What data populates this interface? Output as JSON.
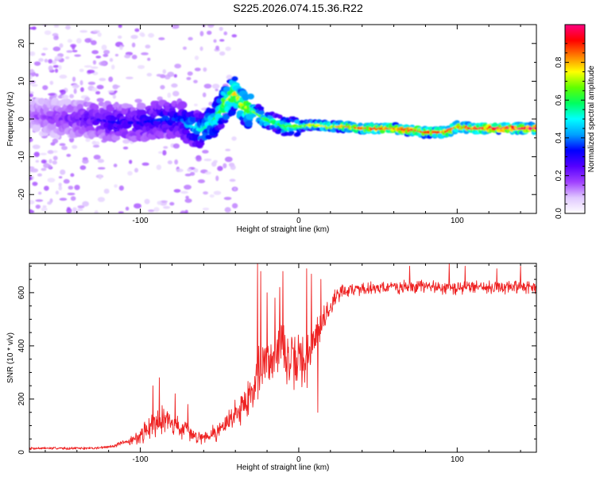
{
  "title": "S225.2026.074.15.36.R22",
  "chart_data": [
    {
      "type": "heatmap",
      "xlabel": "Height of straight line (km)",
      "ylabel": "Frequency (Hz)",
      "xlim": [
        -170,
        150
      ],
      "ylim": [
        -25,
        25
      ],
      "xticks": [
        -100,
        0,
        100
      ],
      "yticks": [
        -20,
        -10,
        0,
        10,
        20
      ],
      "grid": false,
      "legend": "none",
      "colorbar": {
        "label": "Normalized spectral amplitude",
        "range": [
          0,
          1
        ],
        "ticks": [
          0.0,
          0.2,
          0.4,
          0.6,
          0.8
        ],
        "tick_labels": [
          "0.0",
          "0.2",
          "0.4",
          "0.6",
          "0.8"
        ],
        "colormap": [
          "#ffffff",
          "#e0c8ff",
          "#a040ff",
          "#5500ff",
          "#0000ff",
          "#00a0ff",
          "#00ffff",
          "#00ff60",
          "#60ff00",
          "#ffff00",
          "#ff8000",
          "#ff0000",
          "#ff0080"
        ]
      },
      "ridge": {
        "x": [
          -170,
          -150,
          -130,
          -115,
          -100,
          -85,
          -75,
          -68,
          -62,
          -55,
          -50,
          -45,
          -40,
          -37,
          -33,
          -28,
          -22,
          -15,
          -8,
          0,
          10,
          20,
          30,
          40,
          50,
          60,
          70,
          75,
          78,
          85,
          92,
          96,
          100,
          110,
          120,
          130,
          140,
          150
        ],
        "y": [
          1,
          0,
          0,
          -1,
          -1,
          0,
          0,
          -2,
          -3,
          -1,
          2,
          5,
          7,
          4,
          3,
          2,
          0,
          -1,
          -2,
          -2,
          -1.5,
          -2,
          -2,
          -2.5,
          -2.5,
          -2.5,
          -3,
          -3,
          -3.5,
          -3.5,
          -3.5,
          -3,
          -2,
          -2.5,
          -2.5,
          -2.5,
          -2.5,
          -2.5
        ],
        "amplitude": [
          0.15,
          0.2,
          0.25,
          0.3,
          0.3,
          0.35,
          0.35,
          0.45,
          0.5,
          0.55,
          0.6,
          0.7,
          0.75,
          0.7,
          0.7,
          0.65,
          0.6,
          0.55,
          0.6,
          0.65,
          0.7,
          0.75,
          0.8,
          0.85,
          0.9,
          0.9,
          0.9,
          0.9,
          0.85,
          0.85,
          0.9,
          0.9,
          0.9,
          0.9,
          0.95,
          0.95,
          0.95,
          0.95
        ]
      }
    },
    {
      "type": "line",
      "xlabel": "Height of straight line (km)",
      "ylabel": "SNR (10 * v/v)",
      "xlim": [
        -170,
        150
      ],
      "ylim": [
        0,
        710
      ],
      "xticks": [
        -100,
        0,
        100
      ],
      "yticks": [
        0,
        200,
        400,
        600
      ],
      "grid": false,
      "legend": "none",
      "series": [
        {
          "color": "#ee2222",
          "x": [
            -170,
            -150,
            -130,
            -120,
            -110,
            -100,
            -95,
            -90,
            -85,
            -80,
            -75,
            -70,
            -65,
            -60,
            -55,
            -50,
            -45,
            -40,
            -35,
            -30,
            -27,
            -25,
            -22,
            -18,
            -15,
            -12,
            -10,
            -7,
            -5,
            -2,
            0,
            3,
            5,
            8,
            10,
            12,
            15,
            20,
            25,
            30,
            40,
            50,
            60,
            70,
            80,
            90,
            100,
            110,
            120,
            130,
            140,
            150
          ],
          "values": [
            15,
            15,
            15,
            20,
            35,
            60,
            90,
            120,
            130,
            110,
            90,
            75,
            60,
            60,
            70,
            85,
            110,
            150,
            180,
            220,
            290,
            300,
            330,
            350,
            380,
            390,
            400,
            350,
            320,
            330,
            360,
            340,
            330,
            390,
            440,
            460,
            490,
            550,
            600,
            610,
            615,
            620,
            620,
            620,
            625,
            620,
            615,
            625,
            620,
            620,
            625,
            620
          ],
          "noise": [
            5,
            5,
            5,
            6,
            10,
            30,
            45,
            55,
            55,
            45,
            40,
            35,
            25,
            25,
            30,
            40,
            45,
            55,
            70,
            85,
            100,
            120,
            100,
            100,
            90,
            95,
            95,
            100,
            110,
            110,
            110,
            110,
            110,
            95,
            90,
            70,
            60,
            40,
            30,
            30,
            25,
            25,
            25,
            25,
            25,
            25,
            25,
            25,
            25,
            25,
            25,
            25
          ],
          "spikes": [
            [
              -92,
              250
            ],
            [
              -88,
              280
            ],
            [
              -78,
              220
            ],
            [
              -70,
              180
            ],
            [
              -26,
              710
            ],
            [
              -24,
              680
            ],
            [
              -20,
              600
            ],
            [
              -15,
              580
            ],
            [
              -12,
              620
            ],
            [
              -10,
              680
            ],
            [
              5,
              690
            ],
            [
              8,
              670
            ],
            [
              12,
              150
            ],
            [
              14,
              650
            ],
            [
              70,
              700
            ],
            [
              95,
              710
            ],
            [
              105,
              700
            ],
            [
              125,
              690
            ],
            [
              140,
              700
            ]
          ]
        }
      ]
    }
  ]
}
